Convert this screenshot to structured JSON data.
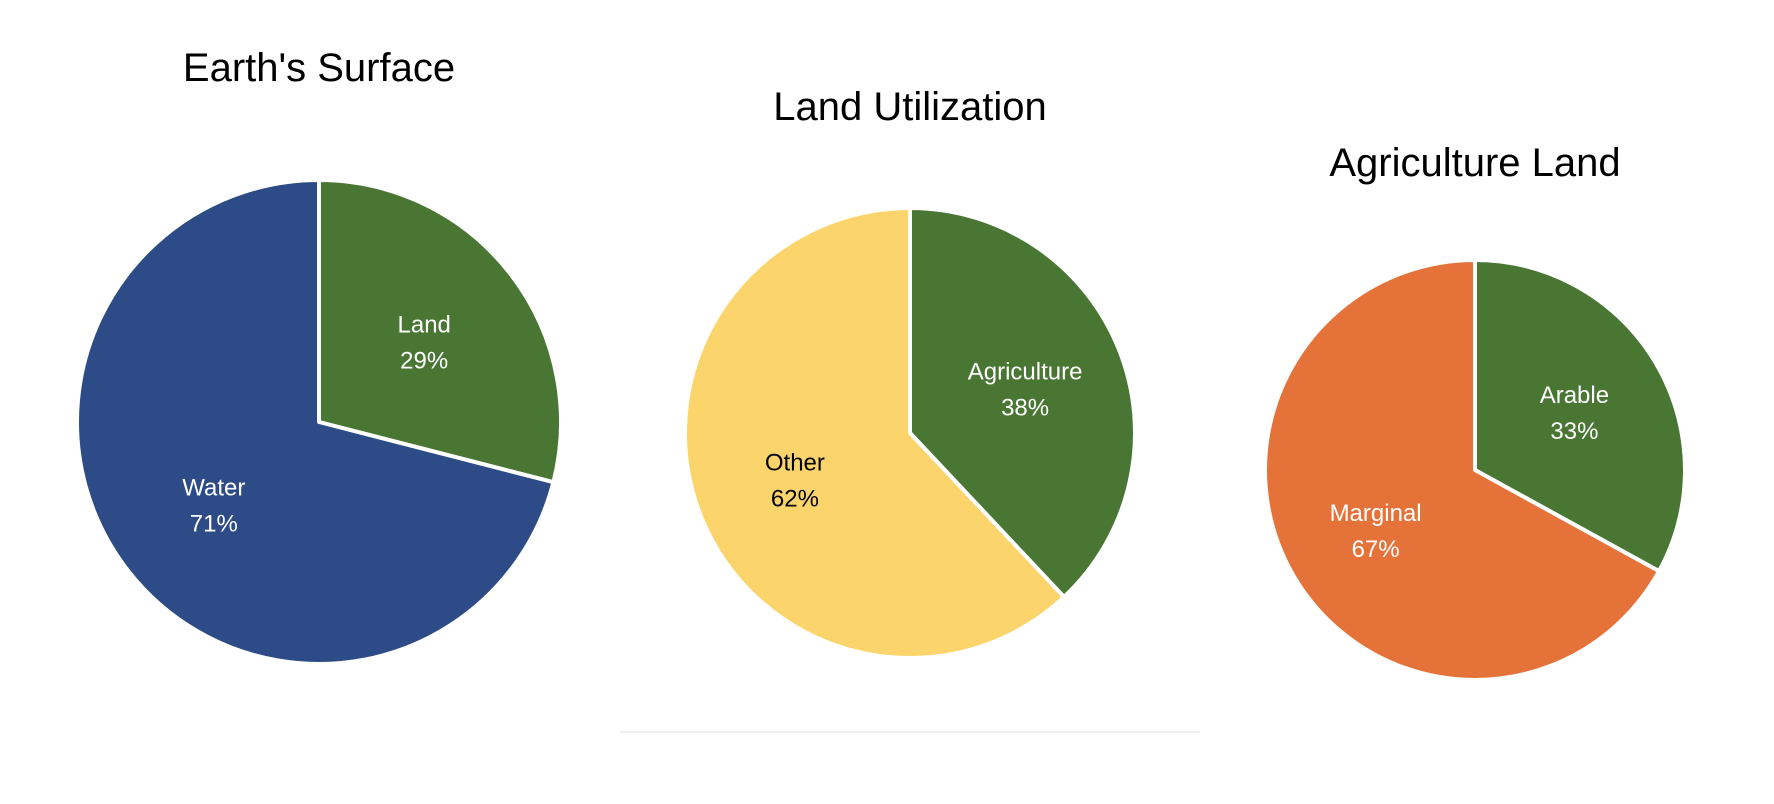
{
  "chart_data": [
    {
      "type": "pie",
      "title": "Earth's Surface",
      "slices": [
        {
          "label": "Land",
          "value": 29,
          "value_text": "29%",
          "color": "#4a7634",
          "label_color": "#ffffff"
        },
        {
          "label": "Water",
          "value": 71,
          "value_text": "71%",
          "color": "#2d4b87",
          "label_color": "#ffffff"
        }
      ]
    },
    {
      "type": "pie",
      "title": "Land Utilization",
      "slices": [
        {
          "label": "Agriculture",
          "value": 38,
          "value_text": "38%",
          "color": "#4a7634",
          "label_color": "#ffffff"
        },
        {
          "label": "Other",
          "value": 62,
          "value_text": "62%",
          "color": "#fbd46c",
          "label_color": "#000000"
        }
      ]
    },
    {
      "type": "pie",
      "title": "Agriculture Land",
      "slices": [
        {
          "label": "Arable",
          "value": 33,
          "value_text": "33%",
          "color": "#4a7634",
          "label_color": "#ffffff"
        },
        {
          "label": "Marginal",
          "value": 67,
          "value_text": "67%",
          "color": "#e57339",
          "label_color": "#ffffff"
        }
      ]
    }
  ]
}
